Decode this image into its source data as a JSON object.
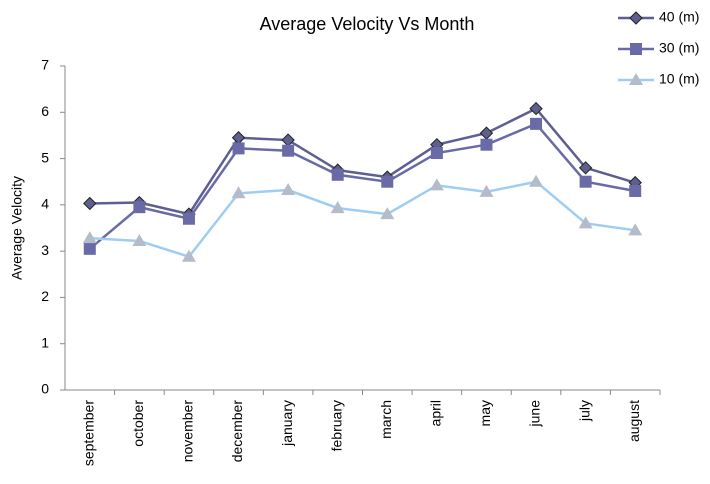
{
  "chart_data": {
    "type": "line",
    "title": "Average Velocity Vs Month",
    "y_label": "Average Velocity",
    "categories": [
      "september",
      "october",
      "november",
      "december",
      "january",
      "february",
      "march",
      "april",
      "may",
      "june",
      "july",
      "august"
    ],
    "series": [
      {
        "name": "40 (m)",
        "color": "#5e5e90",
        "marker": "diamond",
        "values": [
          4.03,
          4.05,
          3.8,
          5.45,
          5.4,
          4.75,
          4.6,
          5.3,
          5.55,
          6.08,
          4.8,
          4.48
        ]
      },
      {
        "name": "30 (m)",
        "color": "#6a6aa6",
        "marker": "square",
        "values": [
          3.05,
          3.95,
          3.7,
          5.22,
          5.17,
          4.65,
          4.5,
          5.12,
          5.3,
          5.75,
          4.5,
          4.3
        ]
      },
      {
        "name": "10 (m)",
        "color": "#9fcdf2",
        "marker": "triangle",
        "values": [
          3.28,
          3.22,
          2.88,
          4.25,
          4.32,
          3.93,
          3.8,
          4.42,
          4.28,
          4.5,
          3.6,
          3.45
        ]
      }
    ],
    "ylim": [
      0,
      7
    ],
    "yticks": [
      0,
      1,
      2,
      3,
      4,
      5,
      6,
      7
    ],
    "grid": false,
    "legend": "top-right"
  }
}
